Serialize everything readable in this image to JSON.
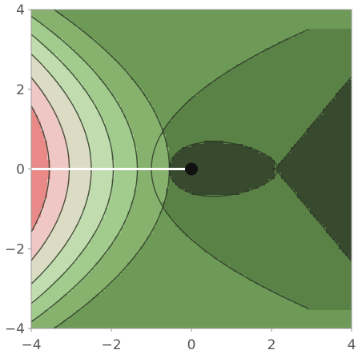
{
  "chart_data": {
    "type": "contour",
    "xlim": [
      -4,
      4
    ],
    "ylim": [
      -4,
      4
    ],
    "x_ticks": [
      {
        "value": -4,
        "label": "−4"
      },
      {
        "value": -2,
        "label": "−2"
      },
      {
        "value": 0,
        "label": "0"
      },
      {
        "value": 2,
        "label": "2"
      },
      {
        "value": 4,
        "label": "4"
      }
    ],
    "y_ticks": [
      {
        "value": -4,
        "label": "−4"
      },
      {
        "value": -2,
        "label": "−2"
      },
      {
        "value": 0,
        "label": "0"
      },
      {
        "value": 2,
        "label": "2"
      },
      {
        "value": 4,
        "label": "4"
      }
    ],
    "grid": false,
    "color_scale": [
      "#e98a89",
      "#efc7c4",
      "#dcdbc3",
      "#c1ddb0",
      "#a2cb8e",
      "#86b26e",
      "#6e9a58",
      "#5a8146",
      "#384a2e"
    ],
    "branch_cut": {
      "from": [
        -4,
        0
      ],
      "to": [
        0,
        0
      ],
      "color": "#ffffff"
    },
    "singularity": {
      "x": 0,
      "y": 0,
      "color": "#111111"
    },
    "saddle_point": {
      "x": 2.05,
      "y": 0
    }
  }
}
